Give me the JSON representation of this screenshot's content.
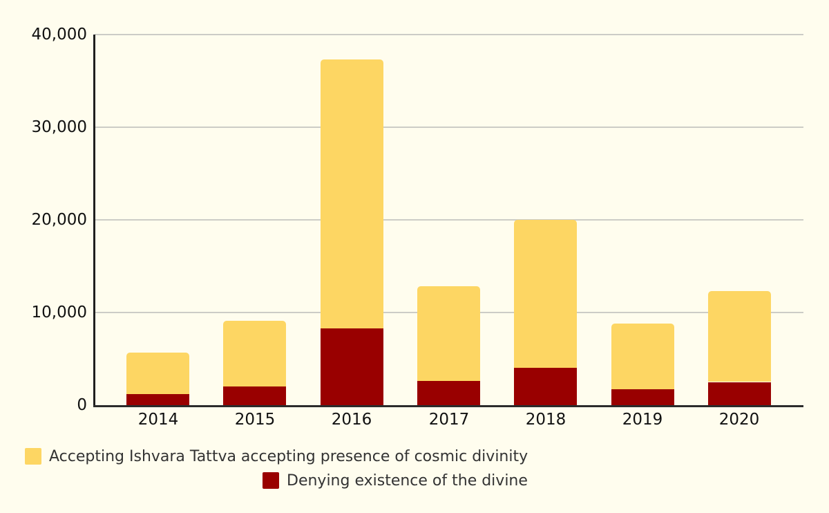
{
  "chart_data": {
    "type": "bar",
    "stacked": true,
    "title": "",
    "xlabel": "",
    "ylabel": "",
    "categories": [
      "2014",
      "2015",
      "2016",
      "2017",
      "2018",
      "2019",
      "2020"
    ],
    "series": [
      {
        "name": "Denying existence of the divine",
        "color": "#990000",
        "stack_position": "bottom",
        "values": [
          1200,
          2000,
          8300,
          2600,
          4000,
          1700,
          2500
        ]
      },
      {
        "name": "Accepting Ishvara Tattva accepting presence of cosmic divinity",
        "color": "#FDD663",
        "stack_position": "top",
        "values": [
          4500,
          7100,
          29000,
          10200,
          16000,
          7100,
          9800
        ]
      }
    ],
    "stacked_totals": [
      5700,
      9100,
      37300,
      12800,
      20000,
      8800,
      12300
    ],
    "ylim": [
      0,
      40000
    ],
    "yticks": [
      0,
      10000,
      20000,
      30000,
      40000
    ],
    "ytick_labels": [
      "0",
      "10,000",
      "20,000",
      "30,000",
      "40,000"
    ],
    "grid": true,
    "legend_position": "bottom"
  },
  "legend": {
    "items": [
      {
        "label": "Accepting Ishvara Tattva accepting presence of cosmic divinity",
        "color": "#FDD663"
      },
      {
        "label": "Denying existence of the divine",
        "color": "#990000"
      }
    ]
  },
  "colors": {
    "background": "#FFFDEE",
    "gridline": "#CCCCC6",
    "axis": "#2b2b2b",
    "tick_text": "#111111",
    "legend_text": "#333333",
    "series_accepting": "#FDD663",
    "series_denying": "#990000"
  }
}
